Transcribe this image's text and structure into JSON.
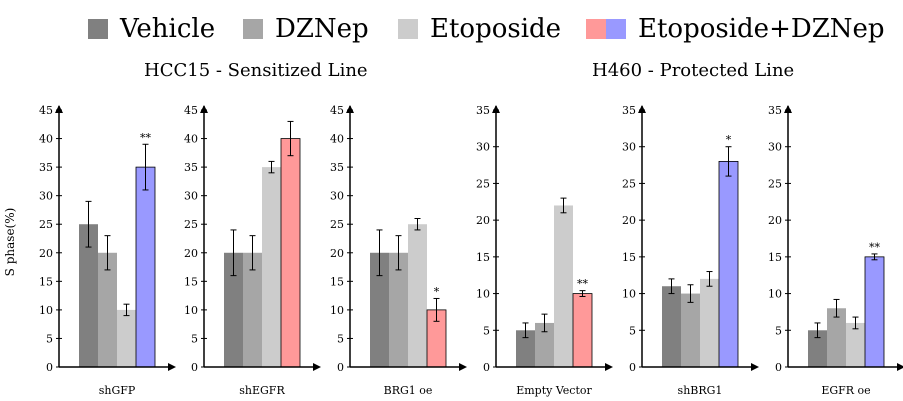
{
  "legend": {
    "items": [
      {
        "label": "Vehicle",
        "colors": [
          "#808080"
        ]
      },
      {
        "label": "DZNep",
        "colors": [
          "#a6a6a6"
        ]
      },
      {
        "label": "Etoposide",
        "colors": [
          "#cccccc"
        ]
      },
      {
        "label": "Etoposide+DZNep",
        "colors": [
          "#ff9999",
          "#9999ff"
        ]
      }
    ]
  },
  "group_titles": {
    "left": "HCC15 - Sensitized Line",
    "right": "H460 - Protected Line"
  },
  "ylabel": "S phase(%)",
  "colors": {
    "vehicle": "#808080",
    "dznep": "#a6a6a6",
    "etoposide": "#cccccc",
    "combo_red": "#ff9999",
    "combo_blue": "#9999ff"
  },
  "chart_data": [
    {
      "type": "bar",
      "category": "shGFP",
      "series": [
        "Vehicle",
        "DZNep",
        "Etoposide",
        "Etoposide+DZNep"
      ],
      "values": [
        25,
        20,
        10,
        35
      ],
      "errors": [
        4,
        3,
        1,
        4
      ],
      "combo_color": "blue",
      "annotation": "**",
      "ylim": [
        0,
        45
      ],
      "yticks": [
        0,
        5,
        10,
        15,
        20,
        25,
        30,
        35,
        40,
        45
      ]
    },
    {
      "type": "bar",
      "category": "shEGFR",
      "series": [
        "Vehicle",
        "DZNep",
        "Etoposide",
        "Etoposide+DZNep"
      ],
      "values": [
        20,
        20,
        35,
        40
      ],
      "errors": [
        4,
        3,
        1,
        3
      ],
      "combo_color": "red",
      "annotation": "",
      "ylim": [
        0,
        45
      ],
      "yticks": [
        0,
        5,
        10,
        15,
        20,
        25,
        30,
        35,
        40,
        45
      ]
    },
    {
      "type": "bar",
      "category": "BRG1 oe",
      "series": [
        "Vehicle",
        "DZNep",
        "Etoposide",
        "Etoposide+DZNep"
      ],
      "values": [
        20,
        20,
        25,
        10
      ],
      "errors": [
        4,
        3,
        1,
        2
      ],
      "combo_color": "red",
      "annotation": "*",
      "ylim": [
        0,
        45
      ],
      "yticks": [
        0,
        5,
        10,
        15,
        20,
        25,
        30,
        35,
        40,
        45
      ]
    },
    {
      "type": "bar",
      "category": "Empty Vector",
      "series": [
        "Vehicle",
        "DZNep",
        "Etoposide",
        "Etoposide+DZNep"
      ],
      "values": [
        5,
        6,
        22,
        10
      ],
      "errors": [
        1,
        1.2,
        1,
        0.4
      ],
      "combo_color": "red",
      "annotation": "**",
      "ylim": [
        0,
        35
      ],
      "yticks": [
        0,
        5,
        10,
        15,
        20,
        25,
        30,
        35
      ]
    },
    {
      "type": "bar",
      "category": "shBRG1",
      "series": [
        "Vehicle",
        "DZNep",
        "Etoposide",
        "Etoposide+DZNep"
      ],
      "values": [
        11,
        10,
        12,
        28
      ],
      "errors": [
        1,
        1.2,
        1,
        2
      ],
      "combo_color": "blue",
      "annotation": "*",
      "ylim": [
        0,
        35
      ],
      "yticks": [
        0,
        5,
        10,
        15,
        20,
        25,
        30,
        35
      ]
    },
    {
      "type": "bar",
      "category": "EGFR oe",
      "series": [
        "Vehicle",
        "DZNep",
        "Etoposide",
        "Etoposide+DZNep"
      ],
      "values": [
        5,
        8,
        6,
        15
      ],
      "errors": [
        1,
        1.2,
        0.8,
        0.4
      ],
      "combo_color": "blue",
      "annotation": "**",
      "ylim": [
        0,
        35
      ],
      "yticks": [
        0,
        5,
        10,
        15,
        20,
        25,
        30,
        35
      ]
    }
  ]
}
